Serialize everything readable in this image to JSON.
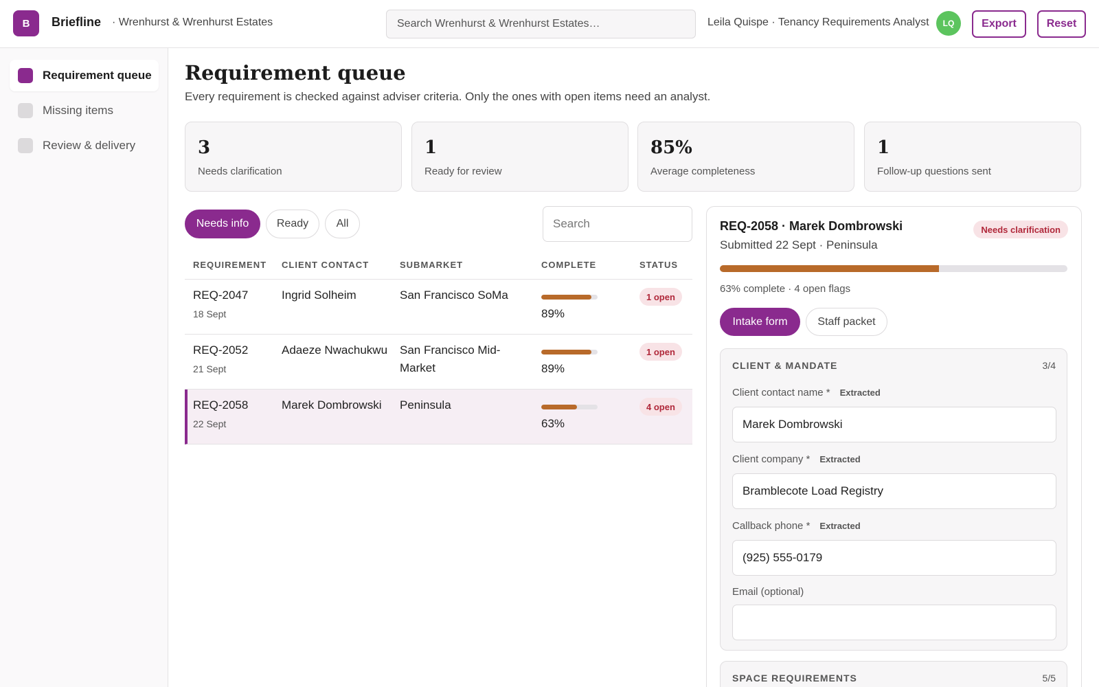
{
  "header": {
    "logo_letter": "B",
    "brand": "Briefline",
    "org": "· Wrenhurst & Wrenhurst Estates",
    "search_placeholder": "Search Wrenhurst & Wrenhurst Estates…",
    "user": "Leila Quispe · Tenancy Requirements Analyst",
    "avatar_initials": "LQ",
    "export_label": "Export",
    "reset_label": "Reset"
  },
  "sidebar": {
    "items": [
      {
        "label": "Requirement queue",
        "active": true
      },
      {
        "label": "Missing items",
        "active": false
      },
      {
        "label": "Review & delivery",
        "active": false
      }
    ]
  },
  "main": {
    "title": "Requirement queue",
    "subtitle": "Every requirement is checked against adviser criteria. Only the ones with open items need an analyst.",
    "stats": [
      {
        "value": "3",
        "label": "Needs clarification"
      },
      {
        "value": "1",
        "label": "Ready for review"
      },
      {
        "value": "85%",
        "label": "Average completeness"
      },
      {
        "value": "1",
        "label": "Follow-up questions sent"
      }
    ],
    "filters": [
      {
        "label": "Needs info",
        "active": true
      },
      {
        "label": "Ready",
        "active": false
      },
      {
        "label": "All",
        "active": false
      }
    ],
    "search_placeholder": "Search"
  },
  "table": {
    "columns": [
      "REQUIREMENT",
      "CLIENT CONTACT",
      "SUBMARKET",
      "COMPLETE",
      "STATUS"
    ],
    "rows": [
      {
        "id": "REQ-2047",
        "date": "18 Sept",
        "contact": "Ingrid Solheim",
        "submarket": "San Francisco SoMa",
        "complete": 89,
        "complete_label": "89%",
        "status": "1 open",
        "selected": false
      },
      {
        "id": "REQ-2052",
        "date": "21 Sept",
        "contact": "Adaeze Nwachukwu",
        "submarket": "San Francisco Mid-Market",
        "complete": 89,
        "complete_label": "89%",
        "status": "1 open",
        "selected": false
      },
      {
        "id": "REQ-2058",
        "date": "22 Sept",
        "contact": "Marek Dombrowski",
        "submarket": "Peninsula",
        "complete": 63,
        "complete_label": "63%",
        "status": "4 open",
        "selected": true
      }
    ]
  },
  "detail": {
    "title": "REQ-2058 · Marek Dombrowski",
    "badge": "Needs clarification",
    "submitted": "Submitted 22 Sept · Peninsula",
    "progress": 63,
    "meta": "63% complete · 4 open flags",
    "tabs": [
      {
        "label": "Intake form",
        "active": true
      },
      {
        "label": "Staff packet",
        "active": false
      }
    ],
    "section1": {
      "title": "CLIENT & MANDATE",
      "count": "3/4",
      "fields": [
        {
          "label": "Client contact name *",
          "tag": "Extracted",
          "value": "Marek Dombrowski"
        },
        {
          "label": "Client company *",
          "tag": "Extracted",
          "value": "Bramblecote Load Registry"
        },
        {
          "label": "Callback phone *",
          "tag": "Extracted",
          "value": "(925) 555-0179"
        },
        {
          "label": "Email (optional)",
          "tag": "",
          "value": ""
        }
      ]
    },
    "section2": {
      "title": "SPACE REQUIREMENTS",
      "count": "5/5"
    }
  },
  "colors": {
    "accent": "#8a2a8e",
    "progress": "#b86a2a",
    "danger_text": "#b0283a",
    "danger_bg": "#f8e3e6",
    "avatar": "#5cc45e"
  }
}
